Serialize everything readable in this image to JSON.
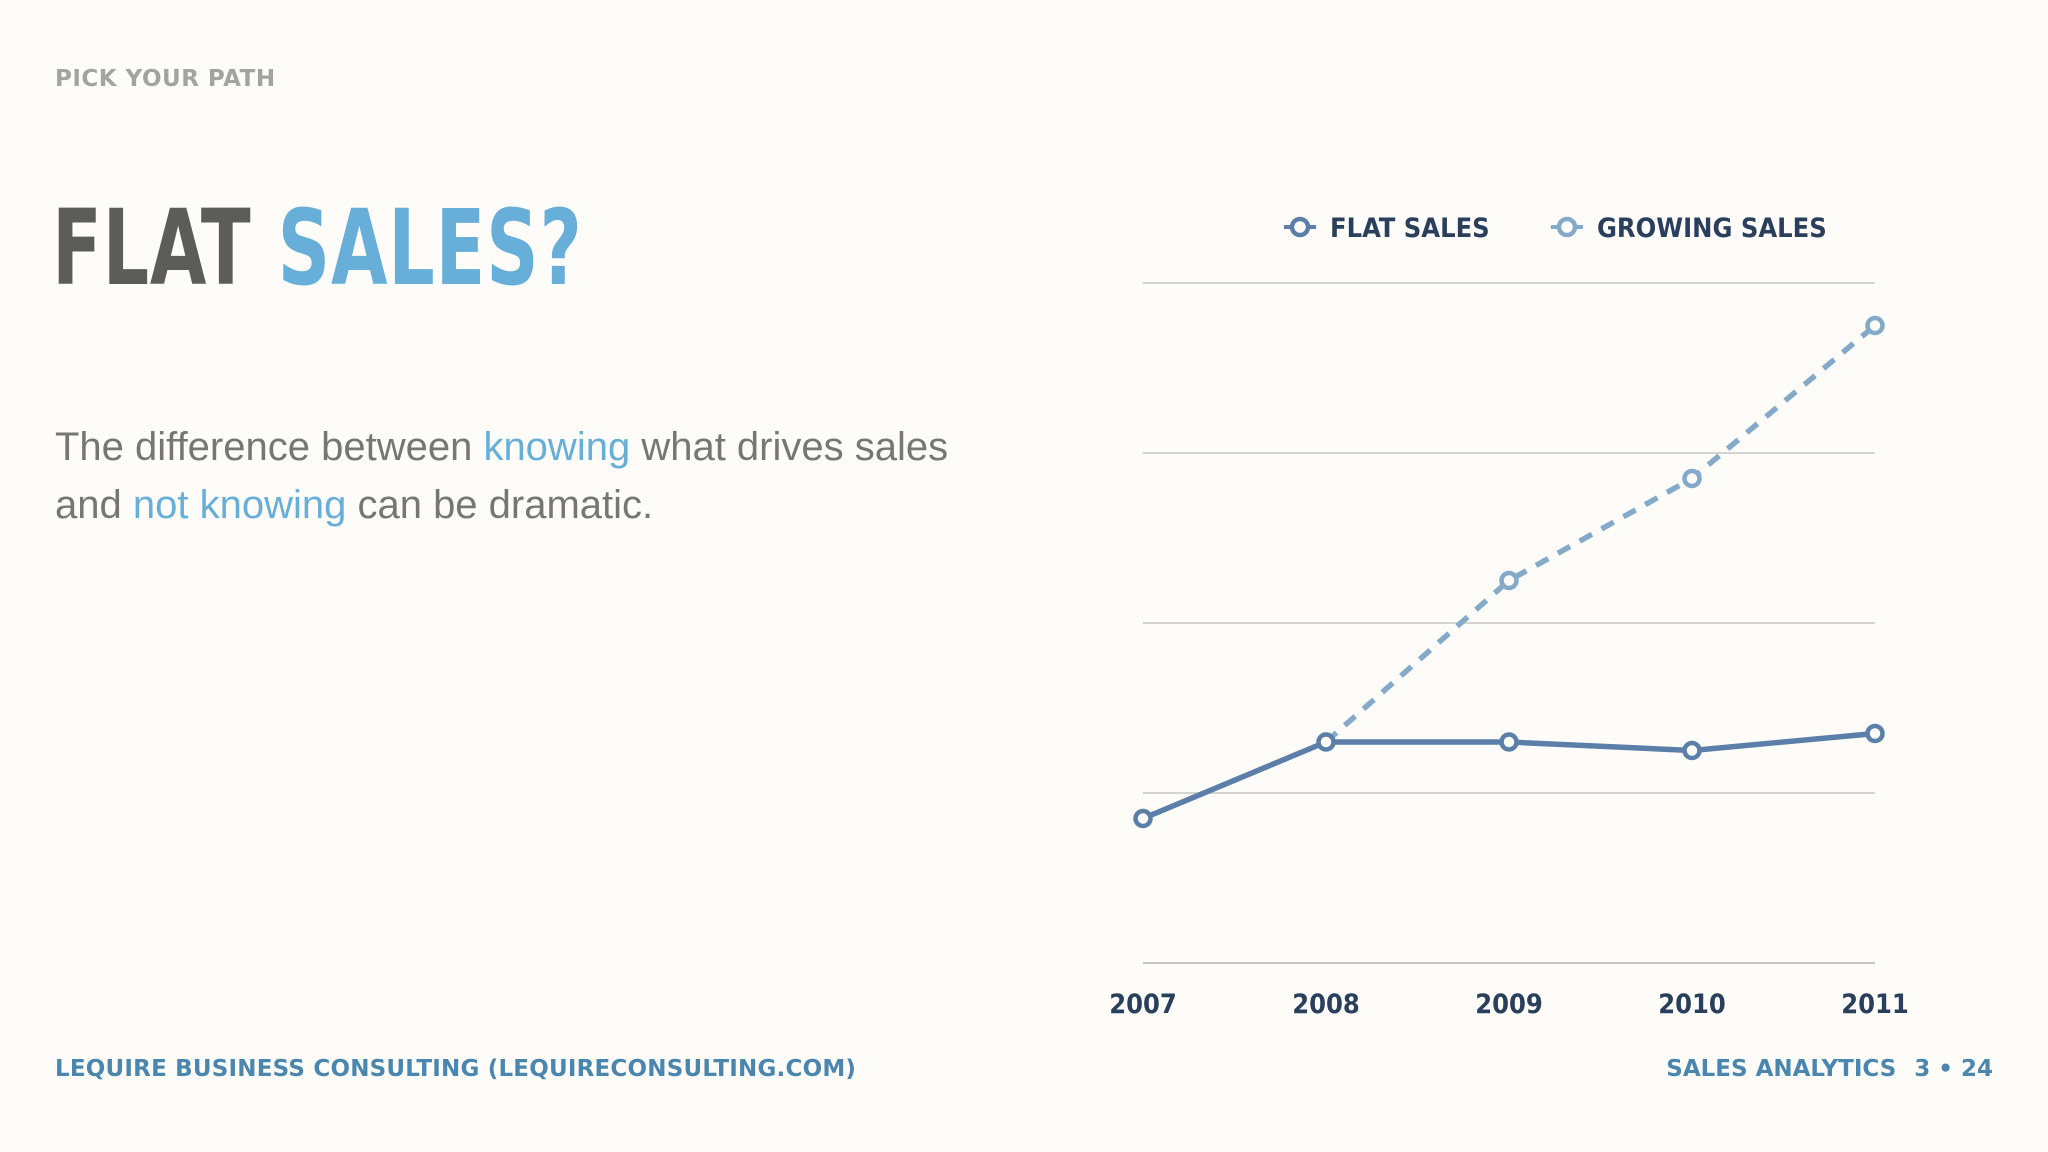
{
  "header": {
    "eyebrow": "PICK YOUR PATH"
  },
  "title": {
    "part1": "FLAT",
    "part2": "SALES?"
  },
  "subtitle": {
    "t1": "The difference between ",
    "h1": "knowing",
    "t2": " what drives sales and ",
    "h2": "not knowing",
    "t3": " can be dramatic."
  },
  "footer": {
    "left": "LEQUIRE BUSINESS CONSULTING (LEQUIRECONSULTING.COM)",
    "section": "SALES ANALYTICS",
    "page": "3 • 24"
  },
  "colors": {
    "flat": "#5b7fa8",
    "growing": "#85a9c8",
    "grid": "#c6c6c3",
    "accent": "#67aed8"
  },
  "chart_data": {
    "type": "line",
    "categories": [
      "2007",
      "2008",
      "2009",
      "2010",
      "2011"
    ],
    "ylim": [
      0,
      4
    ],
    "grid": true,
    "legend": "top",
    "series": [
      {
        "name": "FLAT SALES",
        "style": "solid",
        "values": [
          0.85,
          1.3,
          1.3,
          1.25,
          1.35
        ]
      },
      {
        "name": "GROWING SALES",
        "style": "dashed",
        "values": [
          null,
          1.3,
          2.25,
          2.85,
          3.75
        ]
      }
    ]
  }
}
